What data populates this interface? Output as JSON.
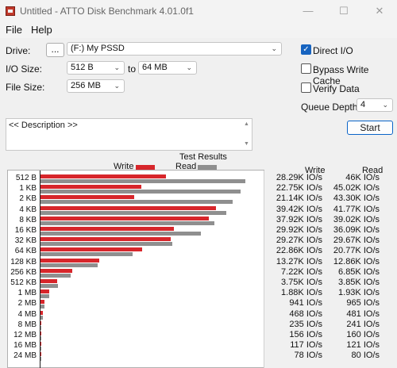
{
  "window": {
    "title": "Untitled - ATTO Disk Benchmark 4.01.0f1",
    "minimize": "—",
    "maximize": "☐",
    "close": "✕"
  },
  "menu": {
    "file": "File",
    "help": "Help"
  },
  "drive": {
    "label": "Drive:",
    "browse": "...",
    "value": "(F:) My PSSD"
  },
  "io_size": {
    "label": "I/O Size:",
    "from": "512 B",
    "to_label": "to",
    "to": "64 MB"
  },
  "file_size": {
    "label": "File Size:",
    "value": "256 MB"
  },
  "options": {
    "direct_io": {
      "label": "Direct I/O",
      "checked": true
    },
    "bypass_write_cache": {
      "label": "Bypass Write Cache",
      "checked": false
    },
    "verify_data": {
      "label": "Verify Data",
      "checked": false
    },
    "queue_depth": {
      "label": "Queue Depth:",
      "value": "4"
    }
  },
  "start_label": "Start",
  "description": "<< Description >>",
  "results": {
    "title": "Test Results",
    "legend_write": "Write",
    "legend_read": "Read",
    "col_write": "Write",
    "col_read": "Read",
    "write_color": "#d7262b",
    "read_color": "#8f8f8f"
  },
  "chart_data": {
    "type": "bar",
    "title": "Test Results",
    "categories": [
      "512 B",
      "1 KB",
      "2 KB",
      "4 KB",
      "8 KB",
      "16 KB",
      "32 KB",
      "64 KB",
      "128 KB",
      "256 KB",
      "512 KB",
      "1 MB",
      "2 MB",
      "4 MB",
      "8 MB",
      "12 MB",
      "16 MB",
      "24 MB"
    ],
    "series": [
      {
        "name": "Write",
        "values": [
          28.29,
          22.75,
          21.14,
          39.42,
          37.92,
          29.92,
          29.27,
          22.86,
          13.27,
          7.22,
          3.75,
          1.88,
          0.941,
          0.468,
          0.235,
          0.156,
          0.117,
          0.078
        ],
        "labels": [
          "28.29K IO/s",
          "22.75K IO/s",
          "21.14K IO/s",
          "39.42K IO/s",
          "37.92K IO/s",
          "29.92K IO/s",
          "29.27K IO/s",
          "22.86K IO/s",
          "13.27K IO/s",
          "7.22K IO/s",
          "3.75K IO/s",
          "1.88K IO/s",
          "941 IO/s",
          "468 IO/s",
          "235 IO/s",
          "156 IO/s",
          "117 IO/s",
          "78 IO/s"
        ]
      },
      {
        "name": "Read",
        "values": [
          46.0,
          45.02,
          43.3,
          41.77,
          39.02,
          36.09,
          29.67,
          20.77,
          12.86,
          6.85,
          3.85,
          1.93,
          0.965,
          0.481,
          0.241,
          0.16,
          0.121,
          0.08
        ],
        "labels": [
          "46K IO/s",
          "45.02K IO/s",
          "43.30K IO/s",
          "41.77K IO/s",
          "39.02K IO/s",
          "36.09K IO/s",
          "29.67K IO/s",
          "20.77K IO/s",
          "12.86K IO/s",
          "6.85K IO/s",
          "3.85K IO/s",
          "1.93K IO/s",
          "965 IO/s",
          "481 IO/s",
          "241 IO/s",
          "160 IO/s",
          "121 IO/s",
          "80 IO/s"
        ]
      }
    ],
    "value_unit": "K IO/s",
    "xlim": [
      0,
      50
    ],
    "legend": "top"
  }
}
